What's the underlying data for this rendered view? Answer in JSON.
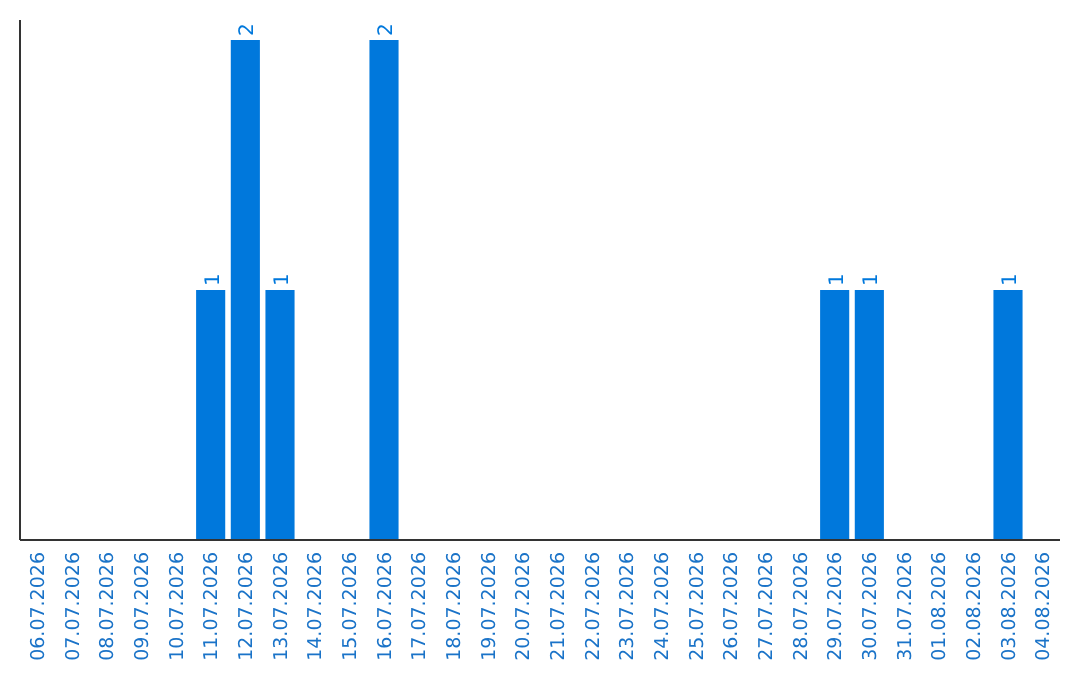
{
  "chart_data": {
    "type": "bar",
    "categories": [
      "06.07.2026",
      "07.07.2026",
      "08.07.2026",
      "09.07.2026",
      "10.07.2026",
      "11.07.2026",
      "12.07.2026",
      "13.07.2026",
      "14.07.2026",
      "15.07.2026",
      "16.07.2026",
      "17.07.2026",
      "18.07.2026",
      "19.07.2026",
      "20.07.2026",
      "21.07.2026",
      "22.07.2026",
      "23.07.2026",
      "24.07.2026",
      "25.07.2026",
      "26.07.2026",
      "27.07.2026",
      "28.07.2026",
      "29.07.2026",
      "30.07.2026",
      "31.07.2026",
      "01.08.2026",
      "02.08.2026",
      "03.08.2026",
      "04.08.2026"
    ],
    "values": [
      0,
      0,
      0,
      0,
      0,
      1,
      2,
      1,
      0,
      0,
      2,
      0,
      0,
      0,
      0,
      0,
      0,
      0,
      0,
      0,
      0,
      0,
      0,
      1,
      1,
      0,
      0,
      0,
      1,
      0
    ],
    "value_labels": [
      null,
      null,
      null,
      null,
      null,
      "1",
      "2",
      "1",
      null,
      null,
      "2",
      null,
      null,
      null,
      null,
      null,
      null,
      null,
      null,
      null,
      null,
      null,
      null,
      "1",
      "1",
      null,
      null,
      null,
      "1",
      null
    ],
    "color": "#0078dc",
    "grid": false
  }
}
